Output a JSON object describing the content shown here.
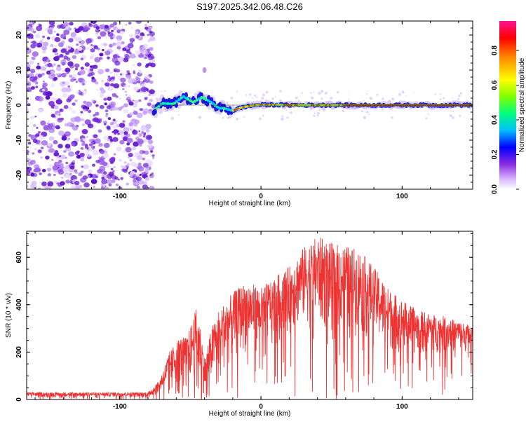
{
  "title": "S197.2025.342.06.48.C26",
  "chart_data": [
    {
      "type": "heatmap",
      "name": "spectrogram",
      "xlabel": "Height of straight line (km)",
      "ylabel": "Frequency (Hz)",
      "xlim": [
        -166,
        150
      ],
      "ylim": [
        -24,
        24
      ],
      "xticks": [
        -100,
        0,
        100
      ],
      "xtick_labels": [
        "-100",
        "0",
        "100"
      ],
      "yticks": [
        -20,
        -10,
        0,
        10,
        20
      ],
      "ytick_labels": [
        "-20",
        "-10",
        "0",
        "10",
        "20"
      ],
      "noise_region_x": [
        -166,
        -76
      ],
      "ridge": {
        "x": [
          -76,
          -70,
          -62,
          -55,
          -48,
          -42,
          -36,
          -30,
          -25,
          -20,
          -15,
          -10,
          -5,
          0,
          10,
          20,
          40,
          60,
          100,
          150
        ],
        "y": [
          -1.5,
          0.5,
          0.3,
          2.5,
          0.8,
          2.2,
          1.0,
          -0.8,
          -1.0,
          -1.6,
          -0.8,
          -0.4,
          0.0,
          0.1,
          0.1,
          0.0,
          0.0,
          0.0,
          0.0,
          0.0
        ]
      },
      "colorbar": {
        "label": "Normalized spectral amplitude",
        "range": [
          0.0,
          0.97
        ],
        "ticks": [
          0.0,
          0.2,
          0.4,
          0.6,
          0.8
        ],
        "tick_labels": [
          "0.0",
          "0.2",
          "0.4",
          "0.6",
          "0.8"
        ]
      }
    },
    {
      "type": "line",
      "name": "snr",
      "xlabel": "Height of straight line (km)",
      "ylabel": "SNR (10 * v/v)",
      "xlim": [
        -166,
        150
      ],
      "ylim": [
        0,
        710
      ],
      "xticks": [
        -100,
        0,
        100
      ],
      "xtick_labels": [
        "-100",
        "0",
        "100"
      ],
      "yticks": [
        0,
        200,
        400,
        600
      ],
      "ytick_labels": [
        "0",
        "200",
        "400",
        "600"
      ],
      "color": "#ee3333",
      "envelope": {
        "x": [
          -166,
          -80,
          -72,
          -65,
          -58,
          -52,
          -45,
          -40,
          -35,
          -30,
          -20,
          -10,
          0,
          10,
          20,
          30,
          40,
          50,
          60,
          70,
          80,
          90,
          100,
          110,
          120,
          130,
          140,
          150
        ],
        "upper": [
          30,
          30,
          80,
          200,
          260,
          270,
          400,
          180,
          300,
          380,
          450,
          500,
          470,
          520,
          560,
          640,
          690,
          660,
          650,
          630,
          560,
          470,
          420,
          380,
          360,
          350,
          330,
          310
        ],
        "lower": [
          10,
          10,
          20,
          50,
          60,
          60,
          80,
          10,
          60,
          100,
          150,
          200,
          200,
          250,
          270,
          300,
          280,
          260,
          270,
          260,
          230,
          200,
          190,
          180,
          190,
          190,
          200,
          190
        ]
      }
    }
  ]
}
